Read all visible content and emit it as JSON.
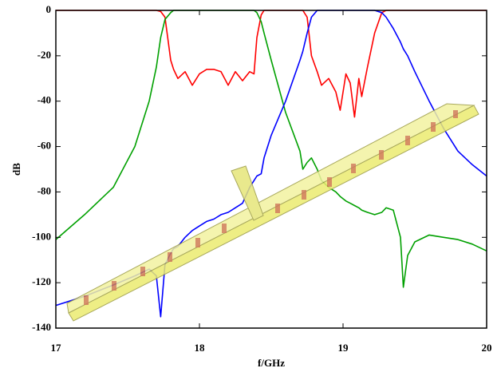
{
  "chart_data": {
    "type": "line",
    "xlabel": "f/GHz",
    "ylabel": "dB",
    "xlim": [
      17,
      20
    ],
    "xticks": [
      17,
      18,
      19,
      20
    ],
    "ylim": [
      -140,
      0
    ],
    "yticks": [
      0,
      -20,
      -40,
      -60,
      -80,
      -100,
      -120,
      -140
    ],
    "x": [
      17,
      17.2,
      17.4,
      17.55,
      17.65,
      17.7,
      17.73,
      17.76,
      17.8,
      17.82,
      17.85,
      17.9,
      17.95,
      18,
      18.05,
      18.1,
      18.15,
      18.2,
      18.25,
      18.3,
      18.35,
      18.38,
      18.4,
      18.43,
      18.45,
      18.5,
      18.6,
      18.7,
      18.72,
      18.75,
      18.78,
      18.82,
      18.85,
      18.9,
      18.95,
      18.98,
      19.02,
      19.05,
      19.08,
      19.11,
      19.13,
      19.17,
      19.22,
      19.27,
      19.3,
      19.35,
      19.4,
      19.42,
      19.45,
      19.5,
      19.6,
      19.7,
      19.8,
      19.9,
      20
    ],
    "series": [
      {
        "color": "#ff0000",
        "values": [
          0,
          0,
          0,
          0,
          0,
          0,
          -0.5,
          -3,
          -22,
          -26,
          -30,
          -27,
          -33,
          -28,
          -26,
          -26,
          -27,
          -33,
          -27,
          -31,
          -27,
          -28,
          -12,
          -2,
          0,
          0,
          0,
          0,
          0,
          -3,
          -20,
          -27,
          -33,
          -30,
          -36,
          -44,
          -28,
          -32,
          -47,
          -30,
          -38,
          -25,
          -10,
          -1,
          0,
          0,
          0,
          0,
          0,
          0,
          0,
          0,
          0,
          0,
          0
        ]
      },
      {
        "color": "#00a000",
        "values": [
          -101,
          -90,
          -78,
          -60,
          -40,
          -25,
          -12,
          -4,
          -1,
          0,
          0,
          0,
          0,
          0,
          0,
          0,
          0,
          0,
          0,
          0,
          0,
          0,
          -1,
          -5,
          -10,
          -22,
          -45,
          -62,
          -70,
          -67,
          -65,
          -70,
          -75,
          -78,
          -80,
          -82,
          -84,
          -85,
          -86,
          -87,
          -88,
          -89,
          -90,
          -89,
          -87,
          -88,
          -100,
          -122,
          -108,
          -102,
          -99,
          -100,
          -101,
          -103,
          -106
        ]
      },
      {
        "color": "#0000ff",
        "values": [
          -130,
          -126,
          -121,
          -117,
          -114,
          -117,
          -135,
          -112,
          -107,
          -105,
          -104,
          -100,
          -97,
          -95,
          -93,
          -92,
          -90,
          -89,
          -87,
          -85,
          -78,
          -75,
          -73,
          -72,
          -65,
          -55,
          -40,
          -22,
          -18,
          -10,
          -3,
          0,
          0,
          0,
          0,
          0,
          0,
          0,
          0,
          0,
          0,
          0,
          0,
          -1,
          -3,
          -8,
          -14,
          -17,
          -20,
          -27,
          -40,
          -52,
          -62,
          -68,
          -73
        ]
      }
    ]
  }
}
